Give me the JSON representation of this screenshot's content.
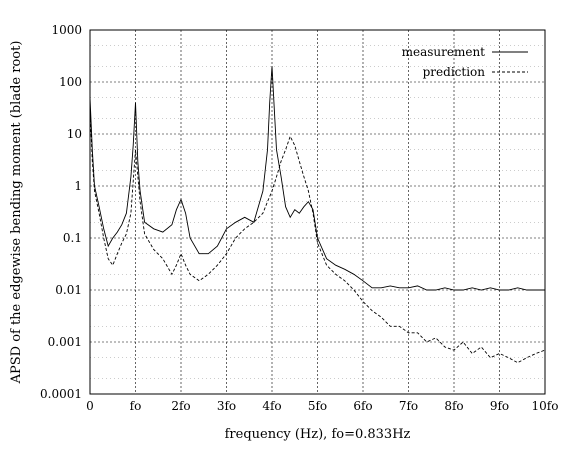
{
  "chart_data": {
    "type": "line",
    "xlabel": "frequency (Hz),  fo=0.833Hz",
    "ylabel": "APSD of the edgewise bending moment (blade root)",
    "xlim": [
      0,
      10
    ],
    "ylim": [
      0.0001,
      1000
    ],
    "yscale": "log",
    "grid": true,
    "legend_position": "top-right",
    "x_tick_labels": [
      "0",
      "fo",
      "2fo",
      "3fo",
      "4fo",
      "5fo",
      "6fo",
      "7fo",
      "8fo",
      "9fo",
      "10fo"
    ],
    "y_tick_labels": [
      "0.0001",
      "0.001",
      "0.01",
      "0.1",
      "1",
      "10",
      "100",
      "1000"
    ],
    "series": [
      {
        "name": "measurement",
        "line_style": "solid",
        "x": [
          0,
          0.05,
          0.1,
          0.2,
          0.3,
          0.4,
          0.5,
          0.6,
          0.7,
          0.8,
          0.9,
          0.95,
          1.0,
          1.05,
          1.1,
          1.2,
          1.4,
          1.6,
          1.8,
          1.9,
          2.0,
          2.1,
          2.2,
          2.4,
          2.6,
          2.8,
          3.0,
          3.2,
          3.4,
          3.6,
          3.8,
          3.9,
          3.95,
          4.0,
          4.05,
          4.1,
          4.2,
          4.3,
          4.4,
          4.5,
          4.6,
          4.7,
          4.8,
          4.9,
          5.0,
          5.2,
          5.4,
          5.6,
          5.8,
          6.0,
          6.2,
          6.4,
          6.6,
          6.8,
          7.0,
          7.2,
          7.4,
          7.6,
          7.8,
          8.0,
          8.2,
          8.4,
          8.6,
          8.8,
          9.0,
          9.2,
          9.4,
          9.6,
          9.8,
          10.0
        ],
        "values": [
          50,
          5,
          1.0,
          0.4,
          0.15,
          0.07,
          0.1,
          0.13,
          0.18,
          0.3,
          1.5,
          6,
          40,
          3,
          0.8,
          0.2,
          0.15,
          0.13,
          0.18,
          0.35,
          0.55,
          0.3,
          0.1,
          0.05,
          0.05,
          0.07,
          0.15,
          0.2,
          0.25,
          0.2,
          0.8,
          5,
          40,
          200,
          30,
          5,
          1.5,
          0.4,
          0.25,
          0.35,
          0.3,
          0.4,
          0.5,
          0.35,
          0.1,
          0.04,
          0.03,
          0.025,
          0.02,
          0.015,
          0.011,
          0.011,
          0.012,
          0.011,
          0.011,
          0.012,
          0.01,
          0.01,
          0.011,
          0.01,
          0.01,
          0.011,
          0.01,
          0.011,
          0.01,
          0.01,
          0.011,
          0.01,
          0.01,
          0.01
        ]
      },
      {
        "name": "prediction",
        "line_style": "dashed",
        "x": [
          0,
          0.05,
          0.1,
          0.2,
          0.3,
          0.4,
          0.5,
          0.6,
          0.7,
          0.8,
          0.9,
          1.0,
          1.1,
          1.2,
          1.4,
          1.6,
          1.8,
          1.9,
          2.0,
          2.1,
          2.2,
          2.4,
          2.6,
          2.8,
          3.0,
          3.2,
          3.4,
          3.6,
          3.8,
          3.9,
          4.0,
          4.1,
          4.2,
          4.3,
          4.4,
          4.5,
          4.6,
          4.7,
          4.8,
          4.9,
          5.0,
          5.2,
          5.4,
          5.6,
          5.8,
          6.0,
          6.2,
          6.4,
          6.6,
          6.8,
          7.0,
          7.2,
          7.4,
          7.6,
          7.8,
          8.0,
          8.2,
          8.4,
          8.6,
          8.8,
          9.0,
          9.2,
          9.4,
          9.6,
          9.8,
          10.0
        ],
        "values": [
          30,
          3,
          0.8,
          0.3,
          0.1,
          0.04,
          0.03,
          0.05,
          0.08,
          0.12,
          0.3,
          5,
          0.5,
          0.12,
          0.06,
          0.04,
          0.02,
          0.03,
          0.05,
          0.03,
          0.02,
          0.015,
          0.02,
          0.03,
          0.05,
          0.1,
          0.15,
          0.2,
          0.3,
          0.5,
          0.8,
          1.5,
          3,
          5,
          9,
          6,
          3,
          1.5,
          0.8,
          0.3,
          0.08,
          0.03,
          0.02,
          0.015,
          0.01,
          0.006,
          0.004,
          0.003,
          0.002,
          0.002,
          0.0015,
          0.0015,
          0.001,
          0.0012,
          0.0008,
          0.0007,
          0.001,
          0.0006,
          0.0008,
          0.0005,
          0.0006,
          0.0005,
          0.0004,
          0.0005,
          0.0006,
          0.0007
        ]
      }
    ]
  }
}
